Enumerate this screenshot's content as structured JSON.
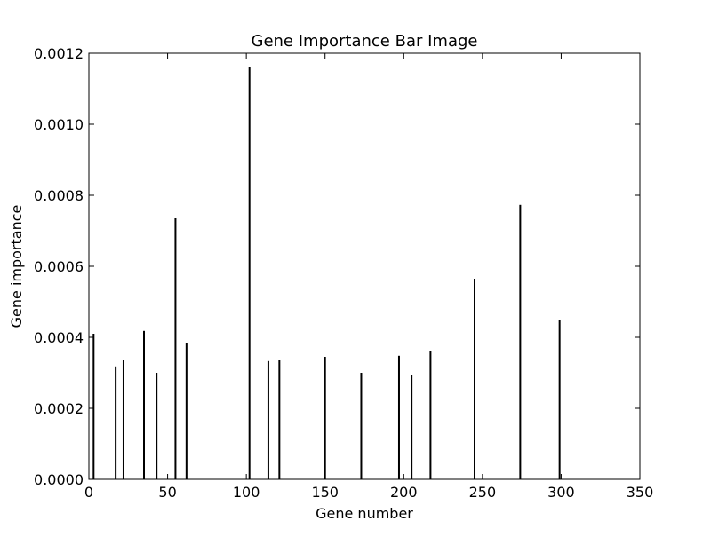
{
  "chart_data": {
    "type": "bar",
    "title": "Gene Importance Bar Image",
    "xlabel": "Gene number",
    "ylabel": "Gene importance",
    "xlim": [
      0,
      350
    ],
    "ylim": [
      0,
      0.0012
    ],
    "xticks": [
      0,
      50,
      100,
      150,
      200,
      250,
      300,
      350
    ],
    "xtick_labels": [
      "0",
      "50",
      "100",
      "150",
      "200",
      "250",
      "300",
      "350"
    ],
    "yticks": [
      0,
      0.0002,
      0.0004,
      0.0006,
      0.0008,
      0.001,
      0.0012
    ],
    "ytick_labels": [
      "0.0000",
      "0.0002",
      "0.0004",
      "0.0006",
      "0.0008",
      "0.0010",
      "0.0012"
    ],
    "grid": false,
    "bar_color": "#000000",
    "points": [
      {
        "x": 3,
        "y": 0.00041
      },
      {
        "x": 17,
        "y": 0.000318
      },
      {
        "x": 22,
        "y": 0.000335
      },
      {
        "x": 35,
        "y": 0.000418
      },
      {
        "x": 43,
        "y": 0.0003
      },
      {
        "x": 55,
        "y": 0.000735
      },
      {
        "x": 62,
        "y": 0.000385
      },
      {
        "x": 102,
        "y": 0.00116
      },
      {
        "x": 114,
        "y": 0.000333
      },
      {
        "x": 121,
        "y": 0.000335
      },
      {
        "x": 150,
        "y": 0.000345
      },
      {
        "x": 173,
        "y": 0.0003
      },
      {
        "x": 197,
        "y": 0.000348
      },
      {
        "x": 205,
        "y": 0.000295
      },
      {
        "x": 217,
        "y": 0.00036
      },
      {
        "x": 245,
        "y": 0.000565
      },
      {
        "x": 274,
        "y": 0.000773
      },
      {
        "x": 299,
        "y": 0.000448
      }
    ]
  }
}
